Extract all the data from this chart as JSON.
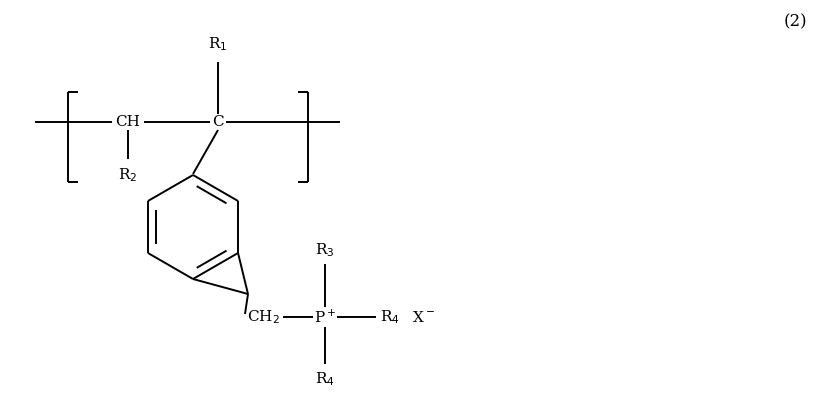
{
  "background_color": "#ffffff",
  "line_color": "#000000",
  "text_color": "#000000",
  "figure_number": "(2)",
  "font_size_labels": 11,
  "font_size_subscript": 11,
  "font_size_number": 12,
  "lw": 1.4
}
